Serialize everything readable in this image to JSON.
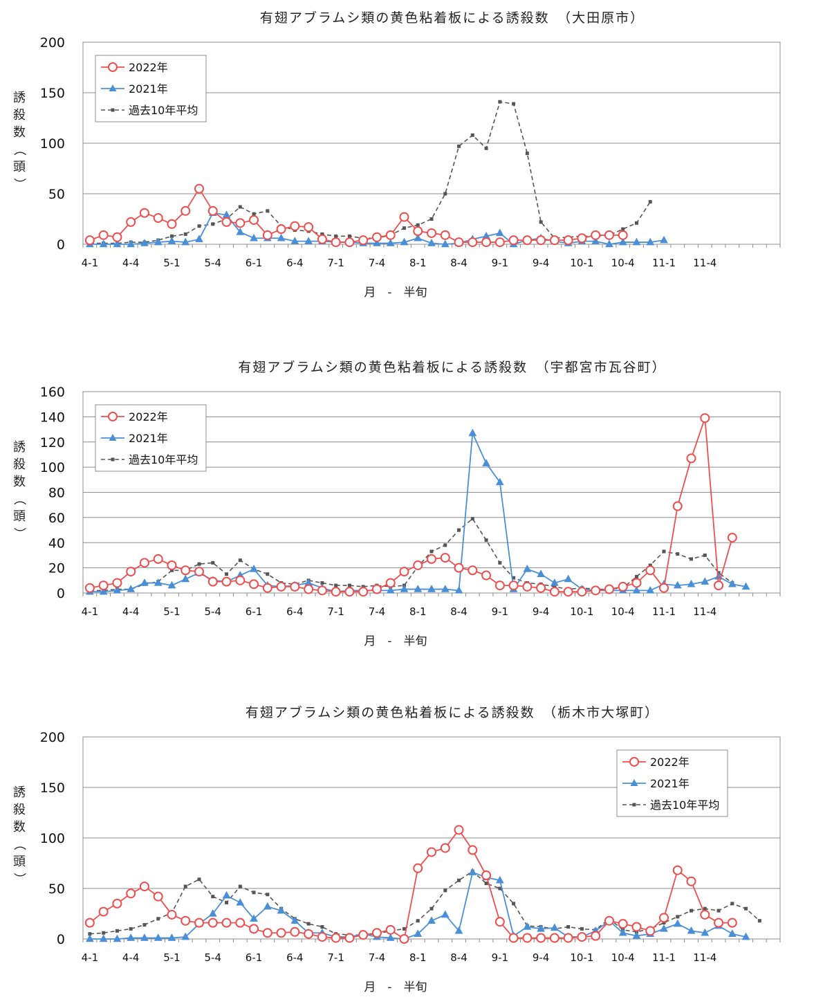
{
  "x_labels": [
    "4-1",
    "4-4",
    "5-1",
    "5-4",
    "6-1",
    "6-4",
    "7-1",
    "7-4",
    "8-1",
    "8-4",
    "9-1",
    "9-4",
    "10-1",
    "10-4",
    "11-1",
    "11-4"
  ],
  "xlabel": "月　-　半旬",
  "ylabel": "誘殺数（頭）",
  "series_style": {
    "2022": {
      "color": "#f04e4e",
      "marker": "circle"
    },
    "2021": {
      "color": "#4a8fd6",
      "marker": "triangle"
    },
    "avg": {
      "color": "#555555",
      "marker": "square",
      "dash": true
    }
  },
  "chart_data": [
    {
      "type": "line",
      "title": "有翅アブラムシ類の黄色粘着板による誘殺数　（大田原市）",
      "xlabel": "月　-　半旬",
      "ylabel": "誘殺数（頭）",
      "ylim": [
        0,
        200
      ],
      "yticks": [
        0,
        50,
        100,
        150,
        200
      ],
      "grid": true,
      "legend_position": "top-left",
      "series": [
        {
          "name": "2022年",
          "key": "2022",
          "values": [
            4,
            9,
            7,
            22,
            31,
            26,
            20,
            33,
            55,
            33,
            22,
            21,
            24,
            9,
            15,
            18,
            17,
            5,
            2,
            2,
            4,
            7,
            9,
            27,
            13,
            11,
            9,
            2,
            2,
            2,
            2,
            4,
            4,
            4,
            4,
            4,
            6,
            9,
            9,
            9
          ]
        },
        {
          "name": "2021年",
          "key": "2021",
          "values": [
            0,
            0,
            0,
            0,
            1,
            2,
            3,
            2,
            5,
            31,
            29,
            12,
            6,
            6,
            6,
            3,
            3,
            3,
            2,
            2,
            1,
            1,
            1,
            2,
            6,
            1,
            0,
            1,
            5,
            8,
            11,
            0,
            4,
            6,
            3,
            1,
            3,
            3,
            0,
            2,
            2,
            2,
            4
          ]
        },
        {
          "name": "過去10年平均",
          "key": "avg",
          "values": [
            1,
            1,
            1,
            2,
            2,
            4,
            8,
            10,
            18,
            20,
            25,
            37,
            30,
            33,
            18,
            14,
            13,
            10,
            8,
            8,
            6,
            6,
            9,
            16,
            19,
            25,
            50,
            97,
            108,
            95,
            141,
            139,
            90,
            22,
            6,
            7,
            8,
            8,
            9,
            15,
            21,
            42
          ]
        }
      ]
    },
    {
      "type": "line",
      "title": "有翅アブラムシ類の黄色粘着板による誘殺数　（宇都宮市瓦谷町）",
      "xlabel": "月　-　半旬",
      "ylabel": "誘殺数（頭）",
      "ylim": [
        0,
        160
      ],
      "yticks": [
        0,
        20,
        40,
        60,
        80,
        100,
        120,
        140,
        160
      ],
      "grid": true,
      "legend_position": "top-left",
      "series": [
        {
          "name": "2022年",
          "key": "2022",
          "values": [
            4,
            6,
            8,
            17,
            24,
            27,
            22,
            18,
            17,
            9,
            9,
            10,
            7,
            4,
            5,
            5,
            3,
            2,
            1,
            1,
            1,
            3,
            8,
            17,
            22,
            27,
            28,
            20,
            18,
            14,
            6,
            6,
            5,
            4,
            1,
            1,
            1,
            2,
            3,
            5,
            8,
            18,
            4,
            69,
            107,
            139,
            6,
            44
          ]
        },
        {
          "name": "2021年",
          "key": "2021",
          "values": [
            1,
            1,
            2,
            3,
            8,
            8,
            6,
            11,
            16,
            10,
            9,
            14,
            19,
            6,
            5,
            6,
            8,
            4,
            1,
            2,
            2,
            2,
            2,
            3,
            3,
            3,
            3,
            2,
            127,
            103,
            88,
            3,
            19,
            15,
            8,
            11,
            3,
            2,
            2,
            2,
            2,
            2,
            7,
            6,
            7,
            9,
            13,
            7,
            5
          ]
        },
        {
          "name": "過去10年平均",
          "key": "avg",
          "values": [
            2,
            2,
            3,
            3,
            7,
            9,
            18,
            18,
            23,
            24,
            15,
            26,
            19,
            15,
            8,
            7,
            10,
            8,
            6,
            6,
            5,
            6,
            5,
            6,
            21,
            33,
            38,
            50,
            59,
            42,
            24,
            12,
            8,
            7,
            5,
            3,
            4,
            3,
            3,
            4,
            13,
            22,
            33,
            31,
            27,
            30,
            16,
            8
          ]
        }
      ]
    },
    {
      "type": "line",
      "title": "有翅アブラムシ類の黄色粘着板による誘殺数　（栃木市大塚町）",
      "xlabel": "月　-　半旬",
      "ylabel": "誘殺数（頭）",
      "ylim": [
        0,
        200
      ],
      "yticks": [
        0,
        50,
        100,
        150,
        200
      ],
      "grid": true,
      "legend_position": "top-right",
      "series": [
        {
          "name": "2022年",
          "key": "2022",
          "values": [
            16,
            27,
            35,
            45,
            52,
            42,
            24,
            18,
            16,
            16,
            16,
            16,
            10,
            6,
            6,
            7,
            5,
            2,
            1,
            1,
            4,
            6,
            9,
            0,
            70,
            86,
            90,
            108,
            88,
            63,
            17,
            1,
            1,
            1,
            1,
            1,
            2,
            3,
            18,
            15,
            12,
            8,
            21,
            68,
            57,
            24,
            16,
            16
          ]
        },
        {
          "name": "2021年",
          "key": "2021",
          "values": [
            0,
            0,
            0,
            1,
            1,
            1,
            1,
            2,
            15,
            25,
            43,
            36,
            20,
            32,
            28,
            18,
            6,
            6,
            2,
            2,
            5,
            2,
            1,
            0,
            5,
            18,
            24,
            8,
            66,
            61,
            58,
            3,
            12,
            10,
            11,
            2,
            2,
            8,
            18,
            6,
            3,
            5,
            10,
            15,
            8,
            6,
            13,
            5,
            2
          ]
        },
        {
          "name": "過去10年平均",
          "key": "avg",
          "values": [
            5,
            6,
            8,
            10,
            14,
            20,
            26,
            52,
            59,
            42,
            36,
            52,
            46,
            44,
            30,
            20,
            15,
            12,
            5,
            4,
            4,
            5,
            8,
            10,
            18,
            30,
            48,
            58,
            67,
            55,
            50,
            35,
            13,
            12,
            10,
            12,
            10,
            9,
            20,
            9,
            7,
            10,
            16,
            22,
            28,
            30,
            28,
            35,
            30,
            18
          ]
        }
      ]
    }
  ]
}
